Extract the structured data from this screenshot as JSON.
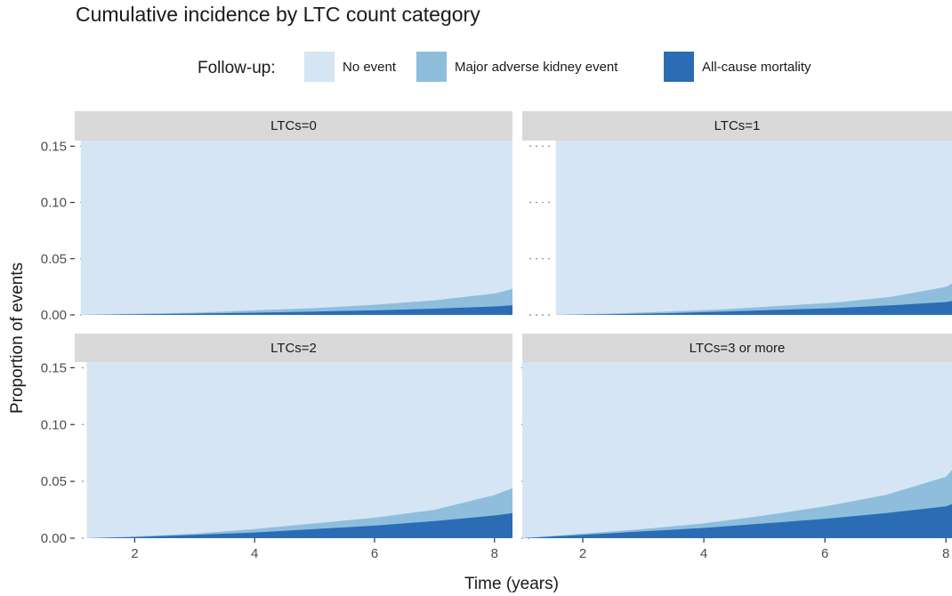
{
  "chart_data": {
    "type": "area",
    "stacked": true,
    "title": "Cumulative incidence by LTC count category",
    "xlabel": "Time (years)",
    "ylabel": "Proportion of events",
    "ylim": [
      0,
      0.155
    ],
    "y_ticks": [
      "0.00",
      "0.05",
      "0.10",
      "0.15"
    ],
    "x_ticks": [
      "2",
      "4",
      "6",
      "8"
    ],
    "legend": {
      "title": "Follow-up:",
      "position": "top",
      "entries": [
        {
          "label": "No event",
          "color": "#d6e5f4"
        },
        {
          "label": "Major adverse kidney event",
          "color": "#8fbedd"
        },
        {
          "label": "All-cause mortality",
          "color": "#2a6db5"
        }
      ]
    },
    "grid": false,
    "panels": [
      {
        "label": "LTCs=0",
        "xlim": [
          1.0,
          8.3
        ],
        "x": [
          1.1,
          2,
          3,
          4,
          5,
          6,
          7,
          8,
          8.3
        ],
        "all_cause_mortality": [
          0,
          0.0005,
          0.0012,
          0.002,
          0.003,
          0.004,
          0.0055,
          0.0075,
          0.0085
        ],
        "major_adverse_kidney_event_cumulative": [
          0,
          0.001,
          0.002,
          0.004,
          0.006,
          0.009,
          0.013,
          0.019,
          0.023
        ]
      },
      {
        "label": "LTCs=1",
        "xlim": [
          0.4,
          8.1
        ],
        "x": [
          1.0,
          2,
          3,
          4,
          5,
          6,
          7,
          8,
          8.1
        ],
        "all_cause_mortality": [
          0,
          0.0006,
          0.0015,
          0.003,
          0.0045,
          0.006,
          0.0085,
          0.0115,
          0.0125
        ],
        "major_adverse_kidney_event_cumulative": [
          0,
          0.0012,
          0.003,
          0.005,
          0.008,
          0.011,
          0.016,
          0.025,
          0.028
        ]
      },
      {
        "label": "LTCs=2",
        "xlim": [
          1.0,
          8.3
        ],
        "x": [
          1.2,
          2,
          3,
          4,
          5,
          6,
          7,
          8,
          8.3
        ],
        "all_cause_mortality": [
          0,
          0.001,
          0.003,
          0.005,
          0.008,
          0.011,
          0.015,
          0.02,
          0.022
        ],
        "major_adverse_kidney_event_cumulative": [
          0,
          0.0015,
          0.004,
          0.008,
          0.013,
          0.018,
          0.025,
          0.038,
          0.044
        ]
      },
      {
        "label": "LTCs=3 or more",
        "xlim": [
          1.0,
          8.1
        ],
        "x": [
          1.0,
          2,
          3,
          4,
          5,
          6,
          7,
          8,
          8.1
        ],
        "all_cause_mortality": [
          0,
          0.003,
          0.006,
          0.009,
          0.013,
          0.017,
          0.022,
          0.028,
          0.03
        ],
        "major_adverse_kidney_event_cumulative": [
          0,
          0.004,
          0.008,
          0.013,
          0.02,
          0.028,
          0.038,
          0.054,
          0.06
        ]
      }
    ]
  }
}
